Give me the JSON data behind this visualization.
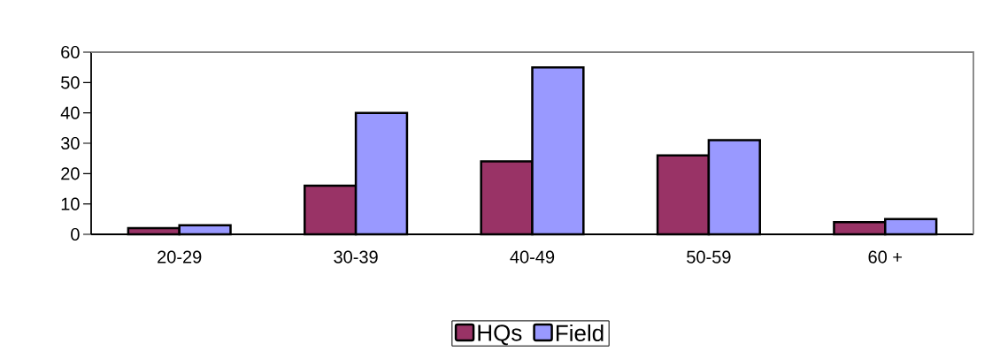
{
  "chart_data": {
    "type": "bar",
    "categories": [
      "20-29",
      "30-39",
      "40-49",
      "50-59",
      "60 +"
    ],
    "series": [
      {
        "name": "HQs",
        "color": "#993366",
        "values": [
          2,
          16,
          24,
          26,
          4
        ]
      },
      {
        "name": "Field",
        "color": "#9999ff",
        "values": [
          3,
          40,
          55,
          31,
          5
        ]
      }
    ],
    "ylim": [
      0,
      60
    ],
    "yticks": [
      0,
      10,
      20,
      30,
      40,
      50,
      60
    ],
    "grid": false,
    "legend": "bottom"
  }
}
